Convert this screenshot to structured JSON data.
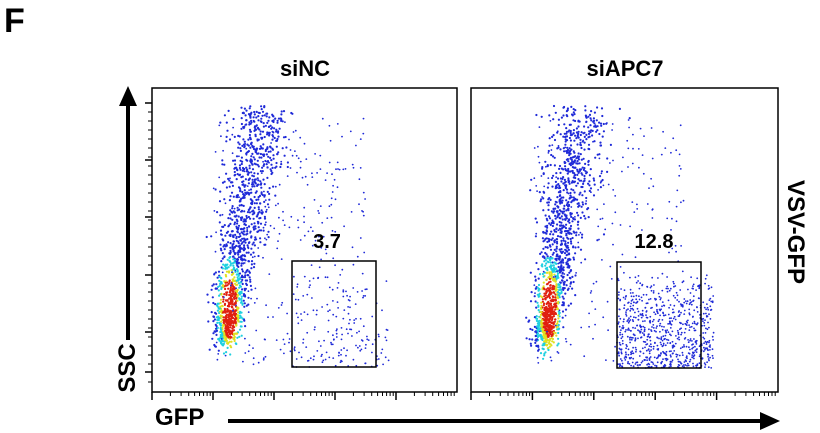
{
  "figure": {
    "panel_letter": "F",
    "row_label": "VSV-GFP",
    "xlabel": "GFP",
    "ylabel": "SSC"
  },
  "colors": {
    "density_low": "#1f2ad8",
    "density_mid": "#1fd0e0",
    "density_high": "#e0e020",
    "density_peak": "#e02010",
    "frame": "#000000"
  },
  "chart_data": [
    {
      "type": "scatter",
      "subtype": "flow-cytometry-density-plot",
      "title": "siNC",
      "xlabel": "GFP",
      "ylabel": "SSC",
      "x_scale": "log",
      "gate": {
        "label": "3.7",
        "percent": 3.7
      },
      "grid": false
    },
    {
      "type": "scatter",
      "subtype": "flow-cytometry-density-plot",
      "title": "siAPC7",
      "xlabel": "GFP",
      "ylabel": "SSC",
      "x_scale": "log",
      "gate": {
        "label": "12.8",
        "percent": 12.8
      },
      "grid": false
    }
  ]
}
